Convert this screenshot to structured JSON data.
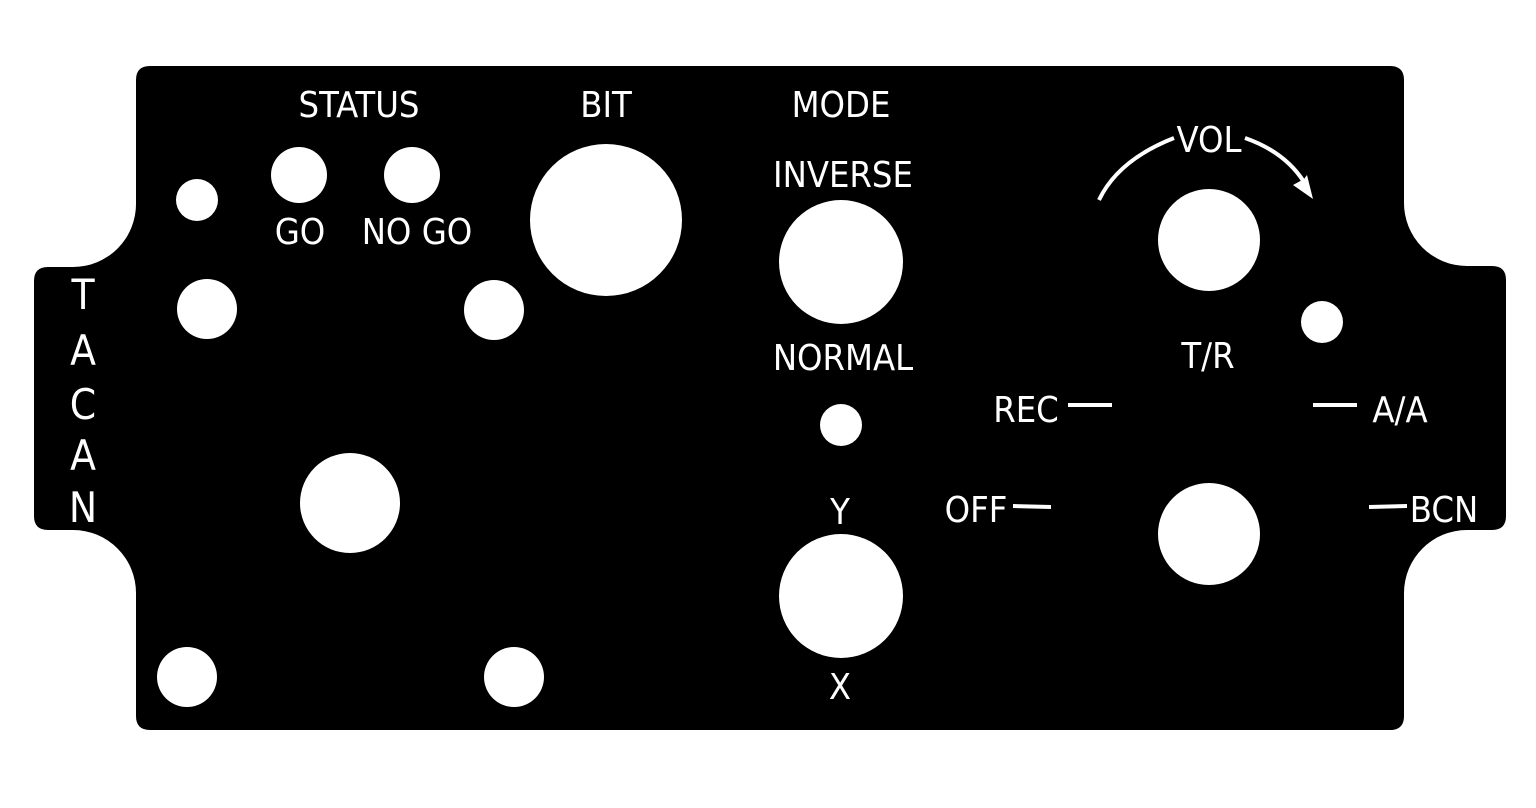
{
  "panel": {
    "name": "TACAN",
    "background_color": "#000000",
    "label_color": "#ffffff"
  },
  "labels": {
    "status": "STATUS",
    "go": "GO",
    "no_go": "NO GO",
    "bit": "BIT",
    "mode": "MODE",
    "inverse": "INVERSE",
    "normal": "NORMAL",
    "y": "Y",
    "x": "X",
    "vol": "VOL",
    "t_r": "T/R",
    "rec": "REC",
    "a_a": "A/A",
    "off": "OFF",
    "bcn": "BCN"
  },
  "side_title": [
    "T",
    "A",
    "C",
    "A",
    "N"
  ]
}
